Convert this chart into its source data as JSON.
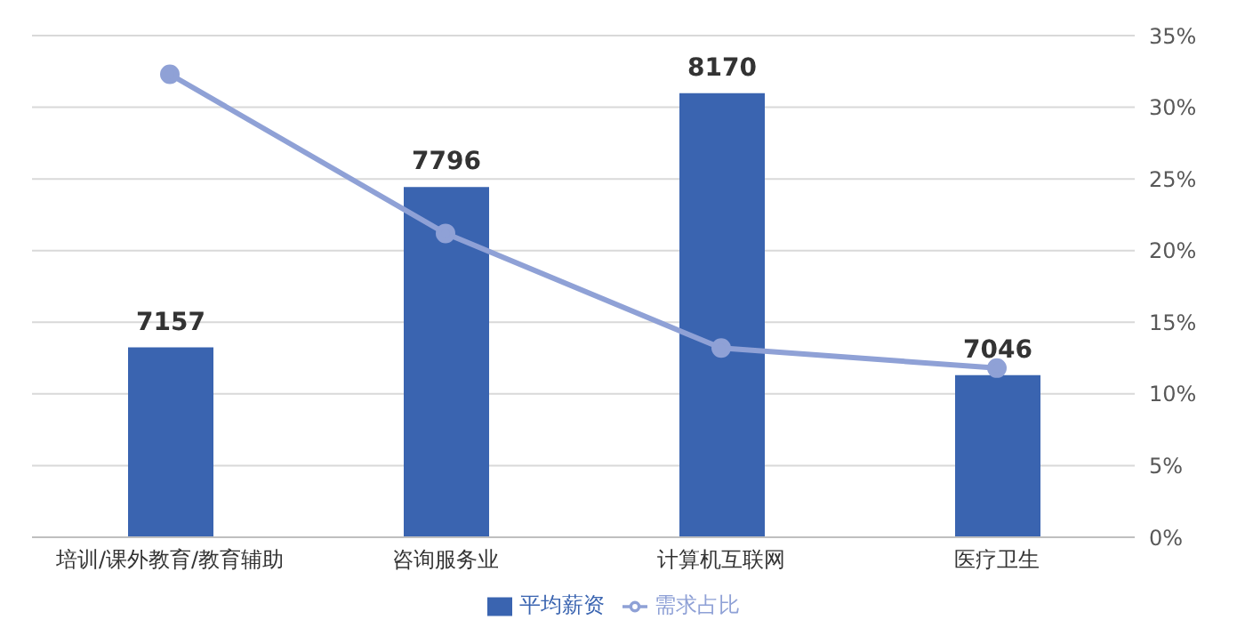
{
  "chart_data": {
    "type": "bar",
    "categories": [
      "培训/课外教育/教育辅助",
      "咨询服务业",
      "计算机互联网",
      "医疗卫生"
    ],
    "series": [
      {
        "name": "平均薪资",
        "color": "#3a64b0",
        "values": [
          7157,
          7796,
          8170,
          7046
        ],
        "value_labels": [
          "7157",
          "7796",
          "8170",
          "7046"
        ]
      },
      {
        "name": "需求占比",
        "type": "line",
        "axis": "y2",
        "color": "#8fa1d6",
        "values": [
          32.3,
          21.2,
          13.2,
          11.8
        ]
      }
    ],
    "ylim": [
      6400,
      8400
    ],
    "y2lim": [
      0,
      35
    ],
    "y2ticks": [
      {
        "value": 0,
        "label": "0%"
      },
      {
        "value": 5,
        "label": "5%"
      },
      {
        "value": 10,
        "label": "10%"
      },
      {
        "value": 15,
        "label": "15%"
      },
      {
        "value": 20,
        "label": "20%"
      },
      {
        "value": 25,
        "label": "25%"
      },
      {
        "value": 30,
        "label": "30%"
      },
      {
        "value": 35,
        "label": "35%"
      }
    ],
    "grid": "y",
    "legend": "bottom",
    "marker": "circle"
  }
}
